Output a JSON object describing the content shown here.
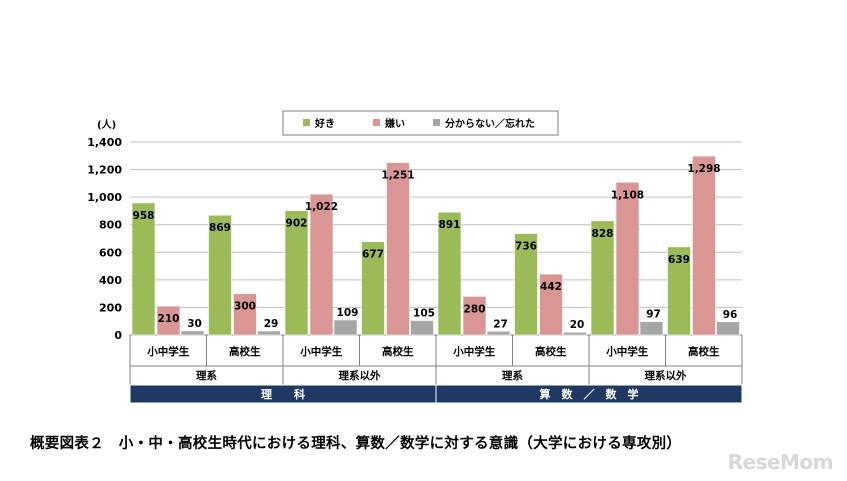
{
  "chart_data": {
    "type": "bar",
    "ylabel": "(人)",
    "ylim": [
      0,
      1400
    ],
    "yticks": [
      "0",
      "200",
      "400",
      "600",
      "800",
      "1,000",
      "1,200",
      "1,400"
    ],
    "grid": true,
    "legend_position": "top-center",
    "series": [
      {
        "name": "好き",
        "color": "#9bbb59",
        "values": [
          958,
          869,
          902,
          677,
          891,
          736,
          828,
          639
        ],
        "labels": [
          "958",
          "869",
          "902",
          "677",
          "891",
          "736",
          "828",
          "639"
        ]
      },
      {
        "name": "嫌い",
        "color": "#d99694",
        "values": [
          210,
          300,
          1022,
          1251,
          280,
          442,
          1108,
          1298
        ],
        "labels": [
          "210",
          "300",
          "1,022",
          "1,251",
          "280",
          "442",
          "1,108",
          "1,298"
        ]
      },
      {
        "name": "分からない／忘れた",
        "color": "#a6a6a6",
        "values": [
          30,
          29,
          109,
          105,
          27,
          20,
          97,
          96
        ],
        "labels": [
          "30",
          "29",
          "109",
          "105",
          "27",
          "20",
          "97",
          "96"
        ]
      }
    ],
    "categories": [
      "小中学生",
      "高校生",
      "小中学生",
      "高校生",
      "小中学生",
      "高校生",
      "小中学生",
      "高校生"
    ],
    "group2": [
      "理系",
      "理系以外",
      "理系",
      "理系以外"
    ],
    "group1": [
      "理　　科",
      "算　数　／　数　学"
    ]
  },
  "caption": "概要図表２　小・中・高校生時代における理科、算数／数学に対する意識（大学における専攻別）",
  "logo": "ReseMom"
}
